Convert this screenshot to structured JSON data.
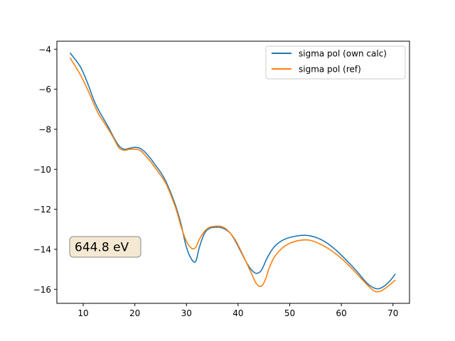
{
  "chart_data": {
    "type": "line",
    "title": "",
    "xlabel": "",
    "ylabel": "",
    "xlim": [
      4.9,
      73.2
    ],
    "ylim": [
      -16.7,
      -3.6
    ],
    "xticks": [
      10,
      20,
      30,
      40,
      50,
      60,
      70
    ],
    "yticks": [
      -4,
      -6,
      -8,
      -10,
      -12,
      -14,
      -16
    ],
    "grid": false,
    "legend_position": "top-right",
    "annotation": {
      "text": "644.8 eV",
      "x": 7.5,
      "y": -14.0,
      "box_fill": "#f5e9d3",
      "box_stroke": "#888888"
    },
    "series": [
      {
        "name": "sigma pol (own calc)",
        "color": "#1f77b4",
        "x": [
          7.5,
          9.5,
          11,
          12,
          13,
          14,
          15,
          16,
          17,
          18,
          19,
          20,
          21,
          22,
          23,
          24,
          25,
          26,
          27,
          28,
          29,
          30,
          31,
          31.8,
          32.5,
          33.5,
          34.5,
          35.5,
          36.5,
          37.5,
          38.5,
          39.5,
          40.5,
          41.5,
          42.5,
          43.5,
          44.5,
          45.5,
          46.5,
          47.5,
          49,
          51,
          53,
          55,
          57,
          59,
          61,
          63,
          65,
          66.5,
          67.5,
          68.5,
          69.5,
          70.4
        ],
        "y": [
          -4.2,
          -4.9,
          -5.8,
          -6.5,
          -7.05,
          -7.5,
          -7.95,
          -8.45,
          -8.85,
          -9.0,
          -8.95,
          -8.9,
          -8.95,
          -9.15,
          -9.45,
          -9.8,
          -10.15,
          -10.6,
          -11.2,
          -11.9,
          -12.8,
          -13.9,
          -14.5,
          -14.6,
          -13.9,
          -13.2,
          -12.95,
          -12.9,
          -12.9,
          -13.0,
          -13.2,
          -13.6,
          -14.1,
          -14.6,
          -15.0,
          -15.2,
          -15.05,
          -14.5,
          -14.05,
          -13.75,
          -13.5,
          -13.35,
          -13.3,
          -13.4,
          -13.65,
          -14.05,
          -14.55,
          -15.1,
          -15.7,
          -15.95,
          -15.95,
          -15.8,
          -15.55,
          -15.25
        ]
      },
      {
        "name": "sigma pol (ref)",
        "color": "#ff7f0e",
        "x": [
          7.5,
          9.5,
          11,
          12,
          13,
          14,
          15,
          16,
          17,
          18,
          19,
          20,
          21,
          22,
          23,
          24,
          25,
          26,
          27,
          28,
          29,
          30,
          31,
          31.8,
          32.5,
          33.5,
          34.5,
          35.5,
          36.5,
          37.5,
          38.5,
          39.5,
          40.5,
          41.5,
          42.5,
          43.5,
          44.5,
          45.3,
          46,
          47,
          48.5,
          50,
          52,
          54,
          56,
          58,
          60,
          62,
          64,
          65.5,
          66.5,
          67.5,
          68.5,
          69.5,
          70.4
        ],
        "y": [
          -4.45,
          -5.3,
          -6.1,
          -6.7,
          -7.25,
          -7.65,
          -8.05,
          -8.5,
          -8.95,
          -9.05,
          -9.0,
          -9.0,
          -9.05,
          -9.3,
          -9.6,
          -9.95,
          -10.3,
          -10.7,
          -11.3,
          -12.0,
          -12.9,
          -13.6,
          -13.95,
          -13.9,
          -13.5,
          -13.1,
          -12.9,
          -12.85,
          -12.85,
          -12.95,
          -13.2,
          -13.55,
          -14.05,
          -14.6,
          -15.15,
          -15.7,
          -15.85,
          -15.5,
          -14.95,
          -14.4,
          -13.95,
          -13.7,
          -13.55,
          -13.55,
          -13.75,
          -14.05,
          -14.45,
          -14.95,
          -15.5,
          -15.9,
          -16.1,
          -16.1,
          -15.95,
          -15.75,
          -15.55
        ]
      }
    ]
  }
}
